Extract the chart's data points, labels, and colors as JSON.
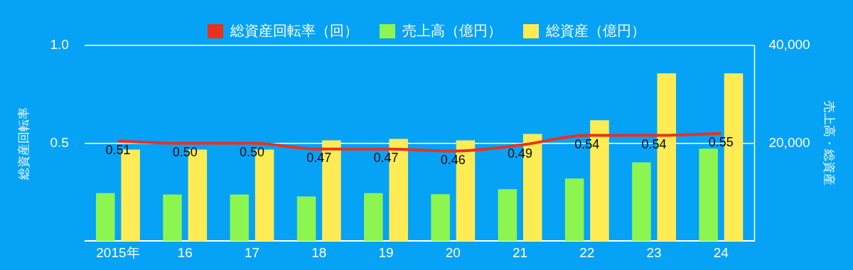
{
  "chart_data": {
    "type": "bar",
    "categories": [
      "2015年",
      "16",
      "17",
      "18",
      "19",
      "20",
      "21",
      "22",
      "23",
      "24"
    ],
    "ylabel": "総資産回転率",
    "y2label": "売上高・総資産",
    "series": [
      {
        "name": "総資産回転率（回）",
        "type": "line",
        "color": "#e8321e",
        "values": [
          0.51,
          0.5,
          0.5,
          0.47,
          0.47,
          0.46,
          0.49,
          0.54,
          0.54,
          0.55
        ],
        "value_labels": [
          "0.51",
          "0.50",
          "0.50",
          "0.47",
          "0.47",
          "0.46",
          "0.49",
          "0.54",
          "0.54",
          "0.55"
        ]
      },
      {
        "name": "売上高（億円）",
        "axis": "y2",
        "color": "#8cf550",
        "values": [
          9800,
          9500,
          9500,
          9100,
          9800,
          9600,
          10600,
          12800,
          16100,
          18900
        ]
      },
      {
        "name": "総資産（億円）",
        "axis": "y2",
        "color": "#ffec55",
        "values": [
          18700,
          18700,
          18700,
          20600,
          20900,
          20600,
          21900,
          24700,
          34300,
          34300
        ]
      }
    ],
    "ylim": [
      0,
      1
    ],
    "yticks": [
      {
        "value": 0,
        "label": null
      },
      0.5,
      {
        "value": 1,
        "label": "1.0"
      }
    ],
    "y2lim": [
      0,
      40000
    ],
    "y2ticks": [
      {
        "value": 0,
        "label": null
      },
      {
        "value": 20000,
        "label": "20,000"
      },
      {
        "value": 40000,
        "label": "40,000"
      }
    ],
    "grid": "y",
    "legend": "top",
    "marker": "none"
  }
}
